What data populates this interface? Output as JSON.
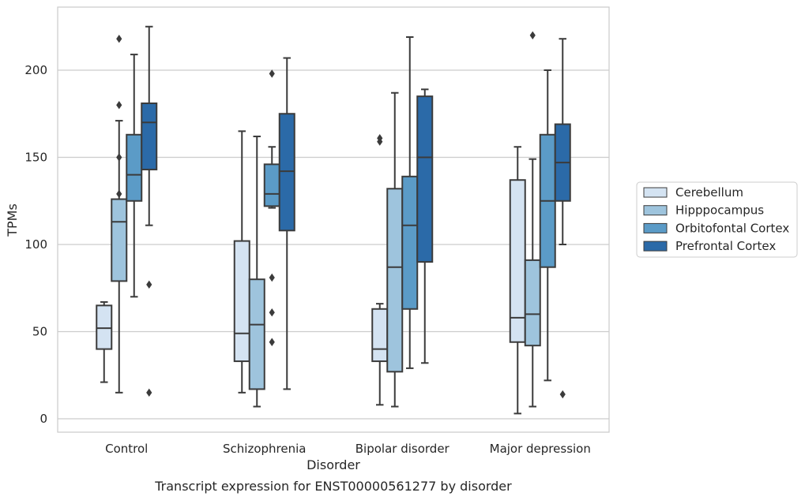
{
  "chart_data": {
    "type": "box",
    "title": "Transcript expression for ENST00000561277 by disorder",
    "xlabel": "Disorder",
    "ylabel": "TPMs",
    "ylim": [
      -8,
      236
    ],
    "yticks": [
      0,
      50,
      100,
      150,
      200
    ],
    "grid": "horizontal",
    "legend_position": "right",
    "categories": [
      "Control",
      "Schizophrenia",
      "Bipolar disorder",
      "Major depression"
    ],
    "series": [
      {
        "name": "Cerebellum",
        "color": "#d4e3f2",
        "boxes": [
          {
            "min": 21,
            "q1": 40,
            "median": 52,
            "q3": 65,
            "max": 67,
            "outliers": []
          },
          {
            "min": 15,
            "q1": 33,
            "median": 49,
            "q3": 102,
            "max": 165,
            "outliers": []
          },
          {
            "min": 8,
            "q1": 33,
            "median": 40,
            "q3": 63,
            "max": 66,
            "outliers": [
              159,
              161
            ]
          },
          {
            "min": 3,
            "q1": 44,
            "median": 58,
            "q3": 137,
            "max": 156,
            "outliers": []
          }
        ]
      },
      {
        "name": "Hipppocampus",
        "color": "#9ec4dd",
        "boxes": [
          {
            "min": 15,
            "q1": 79,
            "median": 113,
            "q3": 126,
            "max": 171,
            "outliers": [
              129,
              150,
              180,
              218
            ]
          },
          {
            "min": 7,
            "q1": 17,
            "median": 54,
            "q3": 80,
            "max": 162,
            "outliers": []
          },
          {
            "min": 7,
            "q1": 27,
            "median": 87,
            "q3": 132,
            "max": 187,
            "outliers": []
          },
          {
            "min": 7,
            "q1": 42,
            "median": 60,
            "q3": 91,
            "max": 149,
            "outliers": [
              220
            ]
          }
        ]
      },
      {
        "name": "Orbitofontal Cortex",
        "color": "#5b9bc7",
        "boxes": [
          {
            "min": 70,
            "q1": 125,
            "median": 140,
            "q3": 163,
            "max": 209,
            "outliers": []
          },
          {
            "min": 121,
            "q1": 122,
            "median": 129,
            "q3": 146,
            "max": 156,
            "outliers": [
              44,
              61,
              81,
              198
            ]
          },
          {
            "min": 29,
            "q1": 63,
            "median": 111,
            "q3": 139,
            "max": 219,
            "outliers": []
          },
          {
            "min": 22,
            "q1": 87,
            "median": 125,
            "q3": 163,
            "max": 200,
            "outliers": []
          }
        ]
      },
      {
        "name": "Prefrontal Cortex",
        "color": "#2b6aa8",
        "boxes": [
          {
            "min": 111,
            "q1": 143,
            "median": 170,
            "q3": 181,
            "max": 225,
            "outliers": [
              15,
              77
            ]
          },
          {
            "min": 17,
            "q1": 108,
            "median": 142,
            "q3": 175,
            "max": 207,
            "outliers": []
          },
          {
            "min": 32,
            "q1": 90,
            "median": 150,
            "q3": 185,
            "max": 189,
            "outliers": []
          },
          {
            "min": 100,
            "q1": 125,
            "median": 147,
            "q3": 169,
            "max": 218,
            "outliers": [
              14
            ]
          }
        ]
      }
    ]
  }
}
